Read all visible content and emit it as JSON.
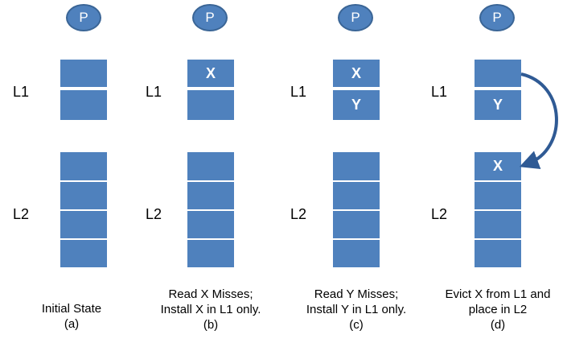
{
  "panels": [
    {
      "processor": "P",
      "l1_label": "L1",
      "l2_label": "L2",
      "l1": [
        "",
        ""
      ],
      "l2": [
        "",
        "",
        "",
        ""
      ],
      "caption": [
        "Initial State",
        "(a)"
      ]
    },
    {
      "processor": "P",
      "l1_label": "L1",
      "l2_label": "L2",
      "l1": [
        "X",
        ""
      ],
      "l2": [
        "",
        "",
        "",
        ""
      ],
      "caption": [
        "Read X Misses;",
        "Install X in L1 only.",
        "(b)"
      ]
    },
    {
      "processor": "P",
      "l1_label": "L1",
      "l2_label": "L2",
      "l1": [
        "X",
        "Y"
      ],
      "l2": [
        "",
        "",
        "",
        ""
      ],
      "caption": [
        "Read Y Misses;",
        "Install Y in L1 only.",
        "(c)"
      ]
    },
    {
      "processor": "P",
      "l1_label": "L1",
      "l2_label": "L2",
      "l1": [
        "",
        "Y"
      ],
      "l2": [
        "X",
        "",
        "",
        ""
      ],
      "caption": [
        "Evict X from L1 and",
        "place in L2",
        "(d)"
      ]
    }
  ],
  "colors": {
    "block": "#4f81bd",
    "border": "#3a6596",
    "arrow": "#2f5a94"
  }
}
